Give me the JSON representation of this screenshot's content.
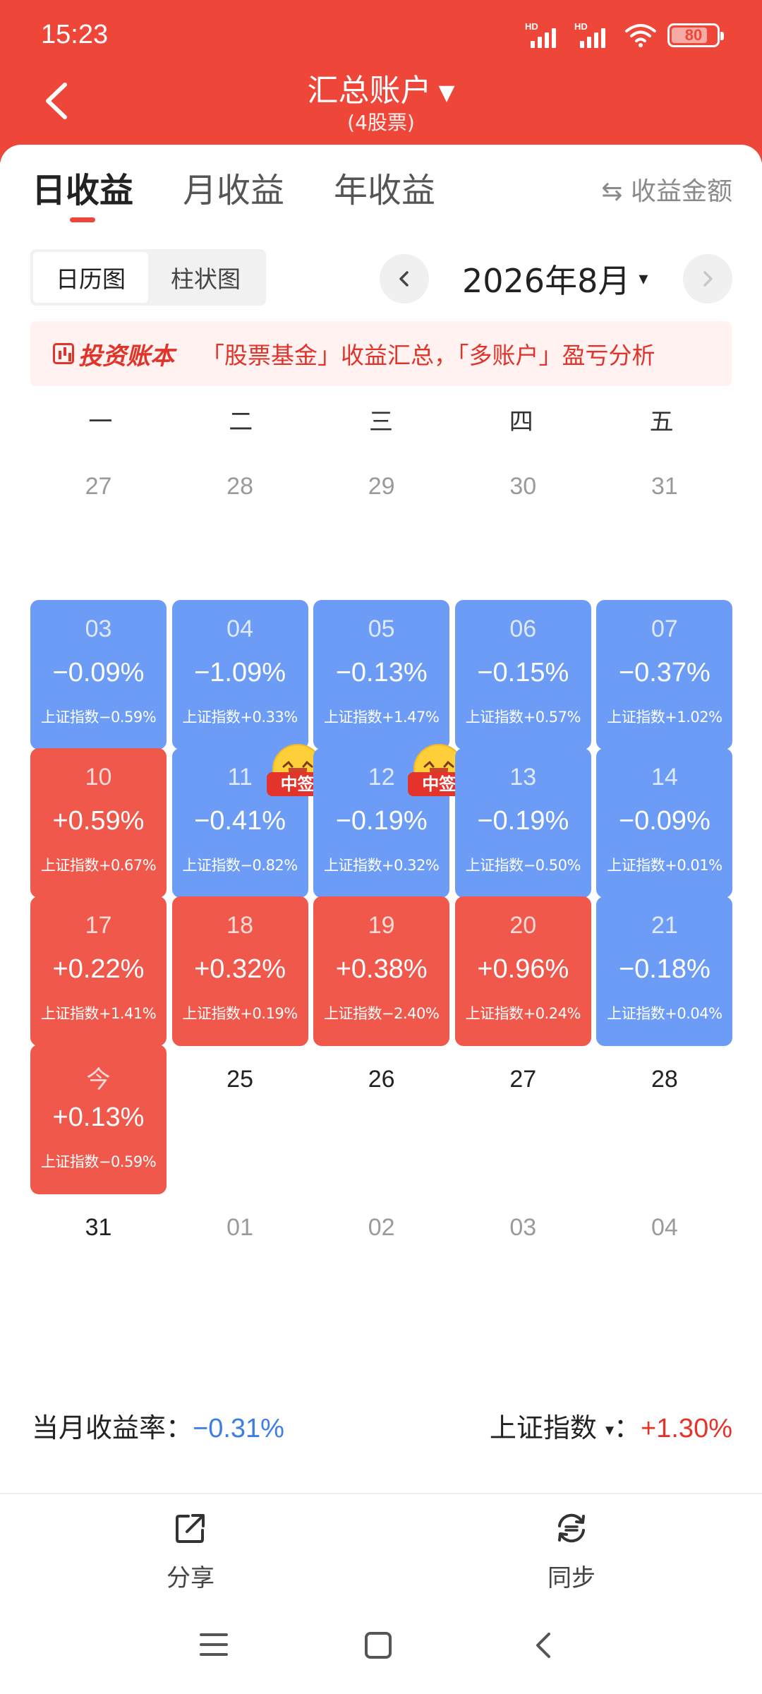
{
  "status_bar": {
    "time": "15:23",
    "signal1_label": "HD",
    "signal2_label": "HD",
    "battery": "80",
    "battery_level": 0.8
  },
  "header": {
    "title": "汇总账户",
    "subtitle": "(4股票)",
    "back_icon": "chevron-left-icon",
    "title_caret_icon": "caret-down-icon"
  },
  "tabs": [
    {
      "label": "日收益",
      "active": true
    },
    {
      "label": "月收益",
      "active": false
    },
    {
      "label": "年收益",
      "active": false
    }
  ],
  "toggle_label": "⇆ 收益金额",
  "view_switch": [
    "日历图",
    "柱状图"
  ],
  "month": {
    "label": "2026年8月",
    "caret": "▾"
  },
  "banner": {
    "brand": "投资账本",
    "text": "「股票基金」收益汇总，「多账户」盈亏分析"
  },
  "weekdays": [
    "一",
    "二",
    "三",
    "四",
    "五"
  ],
  "calendar": [
    [
      {
        "day": "27",
        "style": "muted"
      },
      {
        "day": "28",
        "style": "muted"
      },
      {
        "day": "29",
        "style": "muted"
      },
      {
        "day": "30",
        "style": "muted"
      },
      {
        "day": "31",
        "style": "muted"
      }
    ],
    [
      {
        "day": "03",
        "style": "blue",
        "pct": "−0.09%",
        "index": "上证指数−0.59%"
      },
      {
        "day": "04",
        "style": "blue",
        "pct": "−1.09%",
        "index": "上证指数+0.33%"
      },
      {
        "day": "05",
        "style": "blue",
        "pct": "−0.13%",
        "index": "上证指数+1.47%"
      },
      {
        "day": "06",
        "style": "blue",
        "pct": "−0.15%",
        "index": "上证指数+0.57%"
      },
      {
        "day": "07",
        "style": "blue",
        "pct": "−0.37%",
        "index": "上证指数+1.02%"
      }
    ],
    [
      {
        "day": "10",
        "style": "red",
        "pct": "+0.59%",
        "index": "上证指数+0.67%"
      },
      {
        "day": "11",
        "style": "blue",
        "pct": "−0.41%",
        "index": "上证指数−0.82%",
        "badge": "中签"
      },
      {
        "day": "12",
        "style": "blue",
        "pct": "−0.19%",
        "index": "上证指数+0.32%",
        "badge": "中签"
      },
      {
        "day": "13",
        "style": "blue",
        "pct": "−0.19%",
        "index": "上证指数−0.50%"
      },
      {
        "day": "14",
        "style": "blue",
        "pct": "−0.09%",
        "index": "上证指数+0.01%"
      }
    ],
    [
      {
        "day": "17",
        "style": "red",
        "pct": "+0.22%",
        "index": "上证指数+1.41%"
      },
      {
        "day": "18",
        "style": "red",
        "pct": "+0.32%",
        "index": "上证指数+0.19%"
      },
      {
        "day": "19",
        "style": "red",
        "pct": "+0.38%",
        "index": "上证指数−2.40%"
      },
      {
        "day": "20",
        "style": "red",
        "pct": "+0.96%",
        "index": "上证指数+0.24%"
      },
      {
        "day": "21",
        "style": "blue",
        "pct": "−0.18%",
        "index": "上证指数+0.04%"
      }
    ],
    [
      {
        "day": "今",
        "style": "red",
        "pct": "+0.13%",
        "index": "上证指数−0.59%"
      },
      {
        "day": "25",
        "style": "strong"
      },
      {
        "day": "26",
        "style": "strong"
      },
      {
        "day": "27",
        "style": "strong"
      },
      {
        "day": "28",
        "style": "strong"
      }
    ],
    [
      {
        "day": "31",
        "style": "strong"
      },
      {
        "day": "01",
        "style": "muted"
      },
      {
        "day": "02",
        "style": "muted"
      },
      {
        "day": "03",
        "style": "muted"
      },
      {
        "day": "04",
        "style": "muted"
      }
    ]
  ],
  "summary": {
    "monthly_label": "当月收益率：",
    "monthly_value": "−0.31%",
    "index_label": "上证指数",
    "index_caret": "▾",
    "index_sep": "：",
    "index_value": "+1.30%"
  },
  "actions": [
    {
      "label": "分享",
      "icon": "share-icon"
    },
    {
      "label": "同步",
      "icon": "sync-icon"
    }
  ],
  "colors": {
    "header_red": "#ee4639",
    "loss_blue": "#6d9cf7",
    "gain_red": "#f0584c",
    "negative_text": "#3c7de8",
    "positive_text": "#e5332a"
  }
}
